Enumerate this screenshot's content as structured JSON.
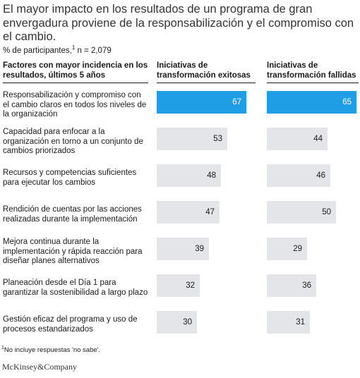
{
  "title": "El mayor impacto en los resultados de un programa de gran envergadura proviene de la responsabilización y el compromiso con el cambio.",
  "subtitle": "% de participantes,",
  "subtitle_sup": "1",
  "subtitle_n": " n = 2,079",
  "footnote_sup": "1",
  "footnote": "No incluye respuestas 'no sabe'.",
  "brand": "McKinsey&Company",
  "colors": {
    "highlight": "#1f9ee6",
    "bar": "#e3e5e8"
  },
  "chart_data": {
    "type": "bar",
    "orientation": "horizontal",
    "category_header": "Factores con mayor incidencia en los resultados, últimos 5 años",
    "categories": [
      "Responsabilización y compromiso con el cambio claros en todos los niveles de la organización",
      "Capacidad para enfocar a la organización en torno a un conjunto de cambios priorizados",
      "Recursos y competencias suficientes para ejecutar los cambios",
      "Rendición de cuentas por las acciones realizadas durante la implementación",
      "Mejora continua durante la implementación y rápida reacción para diseñar planes alternativos",
      "Planeación desde el Día 1 para garantizar la sostenibilidad a largo plazo",
      "Gestión eficaz del programa y uso de procesos estandarizados"
    ],
    "series": [
      {
        "name": "Iniciativas de transformación exitosas",
        "values": [
          67,
          53,
          48,
          47,
          39,
          32,
          30
        ]
      },
      {
        "name": "Iniciativas de transformación fallidas",
        "values": [
          65,
          44,
          46,
          50,
          29,
          36,
          31
        ]
      }
    ],
    "highlight_index": 0,
    "xlim": [
      0,
      67
    ]
  }
}
